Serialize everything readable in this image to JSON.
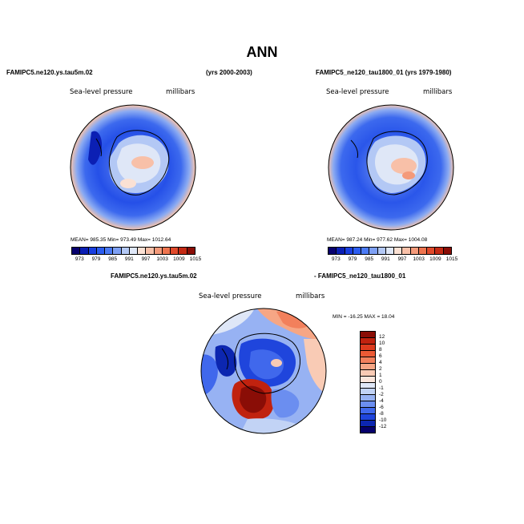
{
  "title": "ANN",
  "top_left": {
    "case_label": "FAMIPC5.ne120.ys.tau5m.02",
    "years": "(yrs 2000-2003)",
    "variable": "Sea-level pressure",
    "units": "millibars",
    "stats": "MEAN= 985.35  Min= 973.49  Max= 1012.64"
  },
  "top_right": {
    "case_label": "FAMIPC5_ne120_tau1800_01 (yrs 1979-1980)",
    "variable": "Sea-level pressure",
    "units": "millibars",
    "stats": "MEAN= 987.24  Min= 977.62  Max= 1004.08"
  },
  "diff": {
    "case_label_left": "FAMIPC5.ne120.ys.tau5m.02",
    "case_label_right": "- FAMIPC5_ne120_tau1800_01",
    "variable": "Sea-level pressure",
    "units": "millibars",
    "stats": "MIN = -16.25  MAX =  18.04"
  },
  "colorbar_abs": {
    "ticks": [
      "973",
      "979",
      "985",
      "991",
      "997",
      "1003",
      "1009",
      "1015"
    ],
    "colors": [
      "#08006e",
      "#0b1fb4",
      "#1a3fe0",
      "#2c5df0",
      "#4b7af5",
      "#7ea0f4",
      "#b3c8f5",
      "#dfe7f7",
      "#fbe1d4",
      "#f8c0a8",
      "#f49a7a",
      "#ee744f",
      "#e04a2b",
      "#c42a14",
      "#8a0d06"
    ]
  },
  "colorbar_diff": {
    "ticks": [
      "12",
      "10",
      "8",
      "6",
      "4",
      "2",
      "1",
      "0",
      "-1",
      "-2",
      "-4",
      "-6",
      "-8",
      "-10",
      "-12"
    ],
    "colors": [
      "#8a0d06",
      "#c0220f",
      "#dd3b1e",
      "#ec5a35",
      "#f2805c",
      "#f6a685",
      "#f9cbb5",
      "#fbe6dc",
      "#dfe7f7",
      "#c2d3f5",
      "#97b2f3",
      "#6b8ef0",
      "#4068ec",
      "#1f45dc",
      "#0c26b0",
      "#06006b"
    ]
  },
  "colors": {
    "ocean_deep": "#1f45e6",
    "ocean_mid": "#4a78f0",
    "pale": "#d8e3f6",
    "warm": "#f5a88a",
    "hot": "#d63a1c"
  }
}
